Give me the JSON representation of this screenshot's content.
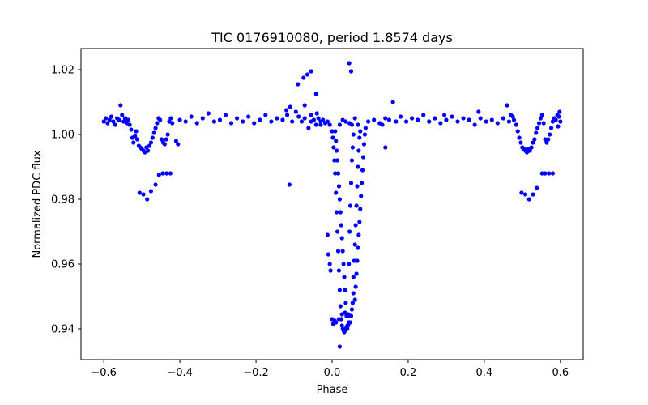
{
  "chart_data": {
    "type": "scatter",
    "title": "TIC 0176910080, period 1.8574 days",
    "xlabel": "Phase",
    "ylabel": "Normalized PDC flux",
    "xlim": [
      -0.66,
      0.66
    ],
    "ylim": [
      0.9305,
      1.0265
    ],
    "xticks": [
      -0.6,
      -0.4,
      -0.2,
      0.0,
      0.2,
      0.4,
      0.6
    ],
    "xtick_labels": [
      "−0.6",
      "−0.4",
      "−0.2",
      "0.0",
      "0.2",
      "0.4",
      "0.6"
    ],
    "yticks": [
      0.94,
      0.96,
      0.98,
      1.0,
      1.02
    ],
    "ytick_labels": [
      "0.94",
      "0.96",
      "0.98",
      "1.00",
      "1.02"
    ],
    "grid": false,
    "marker_color": "#0000ff",
    "series": [
      {
        "points": [
          [
            -0.6,
            1.004
          ],
          [
            -0.595,
            1.005
          ],
          [
            -0.59,
            1.0035
          ],
          [
            -0.585,
            1.0045
          ],
          [
            -0.58,
            1.0055
          ],
          [
            -0.575,
            1.004
          ],
          [
            -0.57,
            1.003
          ],
          [
            -0.565,
            1.005
          ],
          [
            -0.56,
            1.0045
          ],
          [
            -0.556,
            1.009
          ],
          [
            -0.552,
            1.006
          ],
          [
            -0.548,
            1.004
          ],
          [
            -0.544,
            1.005
          ],
          [
            -0.54,
            1.0035
          ],
          [
            -0.536,
            1.0045
          ],
          [
            -0.532,
            1.003
          ],
          [
            -0.528,
            1.0015
          ],
          [
            -0.525,
            0.999
          ],
          [
            -0.522,
            0.9975
          ],
          [
            -0.518,
            0.9995
          ],
          [
            -0.515,
            1.001
          ],
          [
            -0.512,
            0.9985
          ],
          [
            -0.508,
            0.9965
          ],
          [
            -0.504,
            0.996
          ],
          [
            -0.5,
            0.9955
          ],
          [
            -0.496,
            0.995
          ],
          [
            -0.492,
            0.9945
          ],
          [
            -0.488,
            0.996
          ],
          [
            -0.484,
            0.995
          ],
          [
            -0.48,
            0.9965
          ],
          [
            -0.476,
            0.9975
          ],
          [
            -0.472,
            0.999
          ],
          [
            -0.468,
            1.0005
          ],
          [
            -0.464,
            1.002
          ],
          [
            -0.46,
            1.0035
          ],
          [
            -0.456,
            1.005
          ],
          [
            -0.452,
            1.0045
          ],
          [
            -0.448,
            0.9985
          ],
          [
            -0.444,
            0.9975
          ],
          [
            -0.44,
            0.997
          ],
          [
            -0.436,
            0.9985
          ],
          [
            -0.432,
            1.0
          ],
          [
            -0.428,
            1.004
          ],
          [
            -0.424,
            1.005
          ],
          [
            -0.42,
            1.0035
          ],
          [
            -0.41,
            0.998
          ],
          [
            -0.405,
            0.997
          ],
          [
            -0.506,
            0.982
          ],
          [
            -0.496,
            0.9815
          ],
          [
            -0.486,
            0.98
          ],
          [
            -0.476,
            0.9825
          ],
          [
            -0.464,
            0.9845
          ],
          [
            -0.455,
            0.9875
          ],
          [
            -0.445,
            0.988
          ],
          [
            -0.435,
            0.988
          ],
          [
            -0.425,
            0.988
          ],
          [
            -0.4,
            1.0045
          ],
          [
            -0.385,
            1.004
          ],
          [
            -0.37,
            1.0055
          ],
          [
            -0.355,
            1.0035
          ],
          [
            -0.34,
            1.005
          ],
          [
            -0.325,
            1.0065
          ],
          [
            -0.31,
            1.004
          ],
          [
            -0.295,
            1.0045
          ],
          [
            -0.28,
            1.006
          ],
          [
            -0.265,
            1.0035
          ],
          [
            -0.25,
            1.005
          ],
          [
            -0.235,
            1.004
          ],
          [
            -0.22,
            1.0055
          ],
          [
            -0.205,
            1.0035
          ],
          [
            -0.19,
            1.0045
          ],
          [
            -0.175,
            1.006
          ],
          [
            -0.16,
            1.004
          ],
          [
            -0.145,
            1.005
          ],
          [
            -0.13,
            1.0045
          ],
          [
            -0.118,
            1.006
          ],
          [
            -0.112,
            0.9845
          ],
          [
            -0.105,
            1.004
          ],
          [
            -0.095,
            1.007
          ],
          [
            -0.088,
            1.0055
          ],
          [
            -0.08,
            1.004
          ],
          [
            -0.072,
            1.005
          ],
          [
            -0.062,
            1.002
          ],
          [
            -0.055,
            1.004
          ],
          [
            -0.048,
            1.0045
          ],
          [
            -0.042,
            1.003
          ],
          [
            -0.036,
            1.005
          ],
          [
            -0.03,
            1.004
          ],
          [
            -0.024,
            1.0045
          ],
          [
            -0.018,
            1.0035
          ],
          [
            -0.012,
            1.004
          ],
          [
            -0.006,
            1.003
          ],
          [
            -0.12,
            1.0075
          ],
          [
            -0.11,
            1.0085
          ],
          [
            -0.072,
            1.009
          ],
          [
            -0.055,
            1.006
          ],
          [
            -0.04,
            1.0065
          ],
          [
            -0.09,
            1.0155
          ],
          [
            -0.075,
            1.0175
          ],
          [
            -0.065,
            1.0185
          ],
          [
            -0.055,
            1.0195
          ],
          [
            -0.042,
            1.0125
          ],
          [
            -0.03,
            1.003
          ],
          [
            0.0,
            1.001
          ],
          [
            0.002,
            0.999
          ],
          [
            0.004,
            0.996
          ],
          [
            0.006,
            0.992
          ],
          [
            0.008,
            0.988
          ],
          [
            0.01,
            0.982
          ],
          [
            0.012,
            0.976
          ],
          [
            0.014,
            0.97
          ],
          [
            0.016,
            0.964
          ],
          [
            0.018,
            0.958
          ],
          [
            0.02,
            0.952
          ],
          [
            0.022,
            0.947
          ],
          [
            0.024,
            0.943
          ],
          [
            0.026,
            0.941
          ],
          [
            0.028,
            0.94
          ],
          [
            0.03,
            0.9395
          ],
          [
            0.032,
            0.939
          ],
          [
            0.034,
            0.9395
          ],
          [
            0.036,
            0.94
          ],
          [
            0.038,
            0.9405
          ],
          [
            0.04,
            0.94
          ],
          [
            0.042,
            0.941
          ],
          [
            0.044,
            0.942
          ],
          [
            0.046,
            0.944
          ],
          [
            0.048,
            0.942
          ],
          [
            0.05,
            0.944
          ],
          [
            0.052,
            0.946
          ],
          [
            0.054,
            0.948
          ],
          [
            0.056,
            0.951
          ],
          [
            0.01,
            0.942
          ],
          [
            0.018,
            0.943
          ],
          [
            0.026,
            0.9445
          ],
          [
            0.034,
            0.945
          ],
          [
            0.042,
            0.9445
          ],
          [
            0.02,
            0.9345
          ],
          [
            0.003,
            0.9415
          ],
          [
            0.007,
            0.9425
          ],
          [
            0.0,
            0.943
          ],
          [
            -0.01,
            0.963
          ],
          [
            -0.006,
            0.96
          ],
          [
            -0.004,
            0.958
          ],
          [
            -0.012,
            0.969
          ],
          [
            0.008,
            1.001
          ],
          [
            0.01,
            0.998
          ],
          [
            0.012,
            0.995
          ],
          [
            0.014,
            0.992
          ],
          [
            0.016,
            0.988
          ],
          [
            0.018,
            0.984
          ],
          [
            0.02,
            0.98
          ],
          [
            0.022,
            0.976
          ],
          [
            0.024,
            0.972
          ],
          [
            0.026,
            0.968
          ],
          [
            0.028,
            0.964
          ],
          [
            0.03,
            0.96
          ],
          [
            0.032,
            0.956
          ],
          [
            0.034,
            0.952
          ],
          [
            0.036,
            0.948
          ],
          [
            0.038,
            0.944
          ],
          [
            0.04,
            0.941
          ],
          [
            0.06,
            0.949
          ],
          [
            0.062,
            0.953
          ],
          [
            0.064,
            0.957
          ],
          [
            0.066,
            0.961
          ],
          [
            0.068,
            0.965
          ],
          [
            0.07,
            0.969
          ],
          [
            0.072,
            0.973
          ],
          [
            0.074,
            0.977
          ],
          [
            0.076,
            0.981
          ],
          [
            0.078,
            0.985
          ],
          [
            0.08,
            0.989
          ],
          [
            0.082,
            0.993
          ],
          [
            0.084,
            0.997
          ],
          [
            0.086,
            1.0
          ],
          [
            0.088,
            1.002
          ],
          [
            0.056,
            0.956
          ],
          [
            0.058,
            0.961
          ],
          [
            0.06,
            0.966
          ],
          [
            0.062,
            0.972
          ],
          [
            0.064,
            0.978
          ],
          [
            0.066,
            0.984
          ],
          [
            0.068,
            0.99
          ],
          [
            0.07,
            0.995
          ],
          [
            0.072,
            0.999
          ],
          [
            0.074,
            1.001
          ],
          [
            0.044,
            0.96
          ],
          [
            0.046,
            0.97
          ],
          [
            0.048,
            0.978
          ],
          [
            0.05,
            0.985
          ],
          [
            0.052,
            0.992
          ],
          [
            0.054,
            0.996
          ],
          [
            0.056,
            1.0
          ],
          [
            0.02,
            1.003
          ],
          [
            0.028,
            1.0045
          ],
          [
            0.036,
            1.004
          ],
          [
            0.046,
            1.0035
          ],
          [
            0.052,
            1.003
          ],
          [
            0.045,
            1.022
          ],
          [
            0.05,
            1.0195
          ],
          [
            0.06,
            1.005
          ],
          [
            0.068,
            1.003
          ],
          [
            0.095,
            1.004
          ],
          [
            0.11,
            1.0045
          ],
          [
            0.125,
            1.0035
          ],
          [
            0.14,
            1.005
          ],
          [
            0.15,
            1.0045
          ],
          [
            0.16,
            1.01
          ],
          [
            0.168,
            1.004
          ],
          [
            0.14,
            0.996
          ],
          [
            0.132,
            1.003
          ],
          [
            0.18,
            1.0055
          ],
          [
            0.195,
            1.004
          ],
          [
            0.21,
            1.005
          ],
          [
            0.225,
            1.0045
          ],
          [
            0.24,
            1.006
          ],
          [
            0.255,
            1.004
          ],
          [
            0.27,
            1.005
          ],
          [
            0.285,
            1.0035
          ],
          [
            0.3,
            1.0045
          ],
          [
            0.315,
            1.0055
          ],
          [
            0.33,
            1.004
          ],
          [
            0.345,
            1.005
          ],
          [
            0.36,
            1.0045
          ],
          [
            0.375,
            1.003
          ],
          [
            0.39,
            1.005
          ],
          [
            0.405,
            1.004
          ],
          [
            0.42,
            1.0045
          ],
          [
            0.435,
            1.0035
          ],
          [
            0.45,
            1.005
          ],
          [
            0.465,
            1.004
          ],
          [
            0.475,
            1.0055
          ],
          [
            0.385,
            1.007
          ],
          [
            0.295,
            1.006
          ],
          [
            0.46,
            1.009
          ],
          [
            0.47,
            1.006
          ],
          [
            0.478,
            1.0045
          ],
          [
            0.484,
            1.003
          ],
          [
            0.488,
            1.001
          ],
          [
            0.492,
            0.999
          ],
          [
            0.496,
            0.9975
          ],
          [
            0.5,
            0.996
          ],
          [
            0.504,
            0.9955
          ],
          [
            0.508,
            0.995
          ],
          [
            0.512,
            0.9945
          ],
          [
            0.516,
            0.9955
          ],
          [
            0.52,
            0.995
          ],
          [
            0.524,
            0.996
          ],
          [
            0.528,
            0.9975
          ],
          [
            0.532,
            0.9985
          ],
          [
            0.536,
            1.0005
          ],
          [
            0.54,
            1.002
          ],
          [
            0.544,
            1.0035
          ],
          [
            0.548,
            1.005
          ],
          [
            0.552,
            1.006
          ],
          [
            0.556,
            1.0035
          ],
          [
            0.56,
            0.9985
          ],
          [
            0.564,
            0.9975
          ],
          [
            0.568,
            0.9985
          ],
          [
            0.572,
            1.0
          ],
          [
            0.576,
            1.002
          ],
          [
            0.58,
            1.004
          ],
          [
            0.584,
            1.005
          ],
          [
            0.588,
            1.0045
          ],
          [
            0.592,
            1.006
          ],
          [
            0.596,
            1.0055
          ],
          [
            0.6,
            1.004
          ],
          [
            0.598,
            1.007
          ],
          [
            0.594,
            1.0025
          ],
          [
            0.498,
            0.982
          ],
          [
            0.508,
            0.9815
          ],
          [
            0.518,
            0.98
          ],
          [
            0.528,
            0.9815
          ],
          [
            0.538,
            0.9835
          ],
          [
            0.552,
            0.988
          ],
          [
            0.56,
            0.988
          ],
          [
            0.57,
            0.988
          ],
          [
            0.58,
            0.988
          ]
        ]
      }
    ]
  }
}
